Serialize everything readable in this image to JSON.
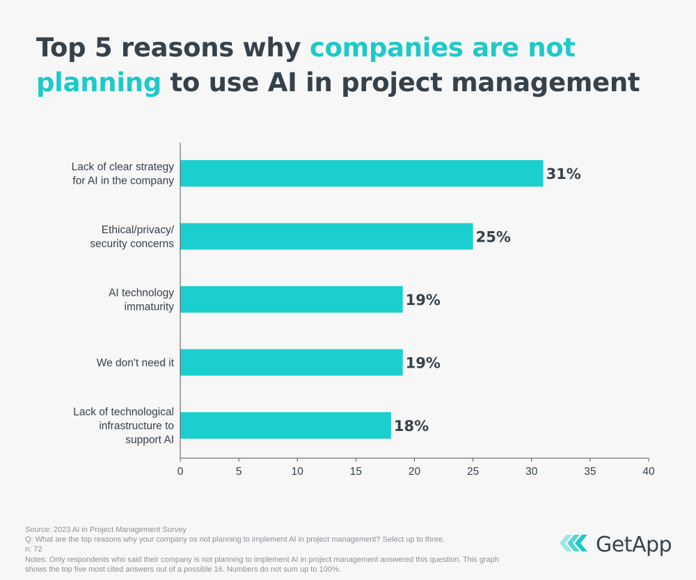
{
  "title": {
    "part1": "Top 5 reasons why ",
    "highlight1": "companies are not",
    "highlight2": "planning",
    "part2": " to use AI in project management"
  },
  "colors": {
    "accent": "#1ec9c9",
    "bar": "#1ccfcf",
    "text": "#36414b"
  },
  "chart_data": {
    "type": "bar",
    "orientation": "horizontal",
    "categories": [
      [
        "Lack of clear strategy",
        "for AI in the company"
      ],
      [
        "Ethical/privacy/",
        "security concerns"
      ],
      [
        "AI technology",
        "immaturity"
      ],
      [
        "We don't need it"
      ],
      [
        "Lack of technological",
        "infrastructure to",
        "support AI"
      ]
    ],
    "values": [
      31,
      25,
      19,
      19,
      18
    ],
    "data_labels": [
      "31%",
      "25%",
      "19%",
      "19%",
      "18%"
    ],
    "xlim": [
      0,
      40
    ],
    "xticks": [
      0,
      5,
      10,
      15,
      20,
      25,
      30,
      35,
      40
    ],
    "xlabel": "",
    "ylabel": "",
    "grid": false
  },
  "footer": {
    "source": "Source: 2023 AI in Project Management Survey",
    "question": "Q: What are the top reasons why your company os not planning to implement AI in project management? Select up to three.",
    "n": "n: 72",
    "notes": "Notes: Only respondents who said their company is not planning to implement AI in project management answered this question. This graph shows the top five most cited answers out of a possible 16. Numbers do not sum up to 100%."
  },
  "logo": {
    "text": "GetApp",
    "icon": "getapp-chevron-logo-icon"
  }
}
